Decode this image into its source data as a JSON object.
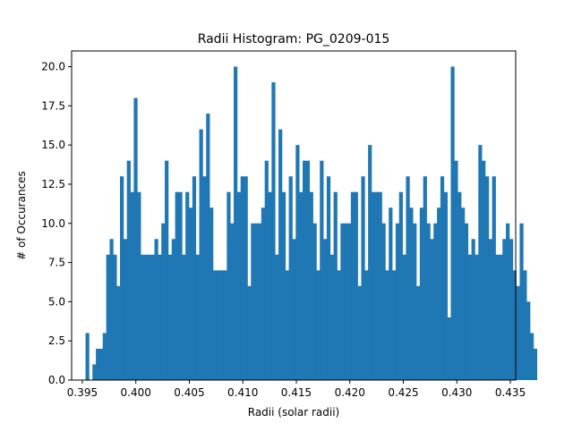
{
  "chart_data": {
    "type": "bar",
    "title": "Radii Histogram: PG_0209-015",
    "xlabel": "Radii (solar radii)",
    "ylabel": "# of Occurances",
    "xlim": [
      0.394,
      0.3535
    ],
    "ylim": [
      0,
      21
    ],
    "xticks": [
      0.395,
      0.4,
      0.405,
      0.41,
      0.415,
      0.42,
      0.425,
      0.43,
      0.435
    ],
    "xtick_labels": [
      "0.395",
      "0.400",
      "0.405",
      "0.410",
      "0.415",
      "0.420",
      "0.425",
      "0.430",
      "0.435"
    ],
    "yticks": [
      0,
      2.5,
      5,
      7.5,
      10,
      12.5,
      15,
      17.5,
      20
    ],
    "ytick_labels": [
      "0.0",
      "2.5",
      "5.0",
      "7.5",
      "10.0",
      "12.5",
      "15.0",
      "17.5",
      "20.0"
    ],
    "bar_color": "#1f77b4",
    "grid": false,
    "bin_start": 0.3953,
    "bin_width": 0.000322,
    "values": [
      3,
      0,
      1,
      2,
      2,
      3,
      8,
      9,
      8,
      6,
      13,
      9,
      14,
      12,
      18,
      12,
      8,
      8,
      8,
      8,
      9,
      8,
      10,
      14,
      8,
      9,
      12,
      12,
      8,
      12,
      11,
      13,
      8,
      16,
      13,
      17,
      11,
      7,
      7,
      7,
      7,
      12,
      10,
      20,
      12,
      13,
      13,
      6,
      10,
      10,
      10,
      11,
      14,
      12,
      19,
      8,
      16,
      12,
      7,
      13,
      9,
      15,
      12,
      14,
      14,
      12,
      10,
      7,
      14,
      9,
      13,
      8,
      12,
      7,
      10,
      10,
      10,
      12,
      12,
      6,
      13,
      7,
      15,
      12,
      12,
      12,
      10,
      7,
      11,
      7,
      10,
      12,
      8,
      13,
      11,
      10,
      6,
      11,
      13,
      10,
      9,
      10,
      11,
      13,
      12,
      4,
      20,
      14,
      12,
      11,
      10,
      8,
      9,
      8,
      15,
      14,
      13,
      9,
      13,
      8,
      8,
      9,
      10,
      9,
      7,
      6,
      10,
      7,
      5,
      3,
      2
    ],
    "xtick_format": "three-decimal",
    "ytick_format": "one-decimal"
  }
}
